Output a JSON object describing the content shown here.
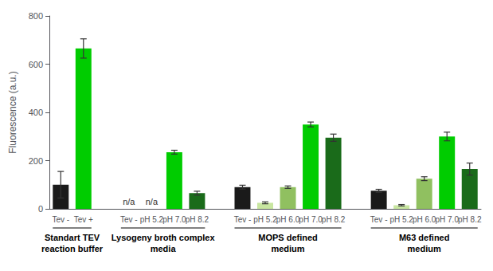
{
  "chart_data": {
    "type": "bar",
    "ylabel": "Fluorescence (a.u.)",
    "ylim": [
      0,
      800
    ],
    "yticks": [
      0,
      200,
      400,
      600,
      800
    ],
    "grid": false,
    "groups": [
      {
        "label": "Standart TEV\nreaction buffer",
        "categories": [
          "Tev -",
          "Tev +"
        ],
        "values": [
          100,
          665
        ],
        "errors": [
          55,
          40
        ],
        "colors": [
          "#1a1a1a",
          "#00cc00"
        ]
      },
      {
        "label": "Lysogeny broth complex\nmedia",
        "categories": [
          "Tev -",
          "pH 5.2",
          "pH 7.0",
          "pH 8.2"
        ],
        "values": [
          null,
          null,
          235,
          65
        ],
        "value_labels": [
          "n/a",
          "n/a",
          null,
          null
        ],
        "errors": [
          null,
          null,
          8,
          8
        ],
        "colors": [
          null,
          null,
          "#00cc00",
          "#1a6b1a"
        ]
      },
      {
        "label": "MOPS defined\nmedium",
        "categories": [
          "Tev -",
          "pH 5.2",
          "pH 6.0",
          "pH 7.0",
          "pH 8.2"
        ],
        "values": [
          90,
          25,
          90,
          350,
          295
        ],
        "errors": [
          8,
          4,
          5,
          10,
          15
        ],
        "colors": [
          "#1a1a1a",
          "#c8e6a0",
          "#90c060",
          "#00cc00",
          "#1a6b1a"
        ]
      },
      {
        "label": "M63 defined\nmedium",
        "categories": [
          "Tev -",
          "pH 5.2",
          "pH 6.0",
          "pH 7.0",
          "pH 8.2"
        ],
        "values": [
          75,
          15,
          125,
          300,
          165
        ],
        "errors": [
          6,
          3,
          8,
          18,
          25
        ],
        "colors": [
          "#1a1a1a",
          "#c8e6a0",
          "#90c060",
          "#00cc00",
          "#1a6b1a"
        ]
      }
    ]
  }
}
